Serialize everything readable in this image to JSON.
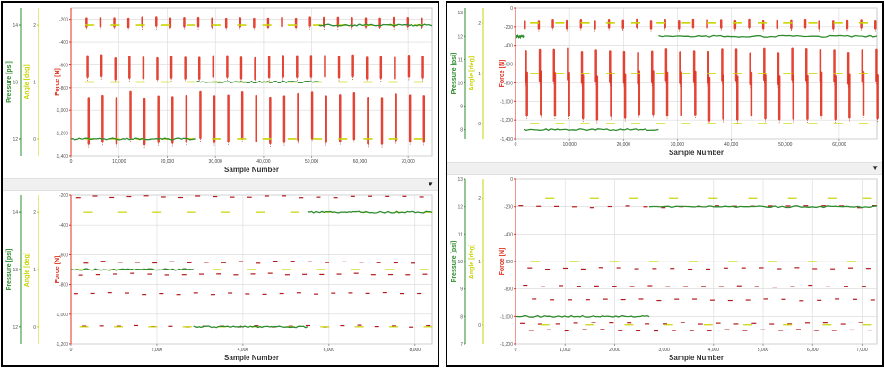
{
  "colors": {
    "pressure": "#2e8b2e",
    "angle": "#c8d400",
    "force": "#e0301e",
    "force_dark": "#b3191b",
    "grid": "#d8d8d8"
  },
  "icons": {
    "splitter_toggle": "dropdown-triangle-icon"
  },
  "chart_data": [
    {
      "id": "left-top",
      "type": "scatter",
      "xlabel": "Sample Number",
      "xlim": [
        0,
        75000
      ],
      "xticks": [
        0,
        10000,
        20000,
        30000,
        40000,
        50000,
        60000,
        70000
      ],
      "xtick_labels": [
        "0",
        "10,000",
        "20,000",
        "30,000",
        "40,000",
        "50,000",
        "60,000",
        "70,000"
      ],
      "axes": {
        "pressure": {
          "label": "Pressure [psi]",
          "ylim": [
            11.7,
            14.3
          ],
          "ticks": [
            12,
            13,
            14
          ],
          "labels": [
            "12",
            "13",
            "14"
          ]
        },
        "angle": {
          "label": "Angle [deg]",
          "ylim": [
            -0.3,
            2.3
          ],
          "ticks": [
            0,
            1,
            2
          ],
          "labels": [
            "0",
            "1",
            "2"
          ]
        },
        "force": {
          "label": "Force [N]",
          "ylim": [
            -1400,
            -100
          ],
          "ticks": [
            -200,
            -400,
            -600,
            -800,
            -1000,
            -1200,
            -1400
          ],
          "labels": [
            "-200",
            "-400",
            "-600",
            "-800",
            "-1,000",
            "-1,200",
            "-1,400"
          ]
        }
      },
      "force_bursts": {
        "start": 3000,
        "period": 2900,
        "width": 320,
        "rows": [
          [
            -180,
            -270
          ],
          [
            -520,
            -720
          ],
          [
            -860,
            -1280
          ]
        ]
      },
      "pressure_series": [
        {
          "x0": 0,
          "x1": 26000,
          "y": 12.0
        },
        {
          "x0": 26000,
          "x1": 51500,
          "y": 13.0
        },
        {
          "x0": 51500,
          "x1": 75000,
          "y": 14.0
        }
      ],
      "angle_levels": [
        {
          "x0": 0,
          "x1": 75000,
          "y": 0.0
        },
        {
          "x0": 0,
          "x1": 75000,
          "y": 1.0
        },
        {
          "x0": 0,
          "x1": 75000,
          "y": 2.0
        }
      ]
    },
    {
      "id": "left-bottom",
      "type": "scatter",
      "xlabel": "Sample Number",
      "xlim": [
        0,
        8400
      ],
      "xticks": [
        0,
        2000,
        4000,
        6000,
        8000
      ],
      "xtick_labels": [
        "0",
        "2,000",
        "4,000",
        "6,000",
        "8,000"
      ],
      "axes": {
        "pressure": {
          "label": "Pressure [psi]",
          "ylim": [
            11.7,
            14.3
          ],
          "ticks": [
            12,
            13,
            14
          ],
          "labels": [
            "12",
            "13",
            "14"
          ]
        },
        "angle": {
          "label": "Angle [deg]",
          "ylim": [
            -0.3,
            2.3
          ],
          "ticks": [
            0,
            1,
            2
          ],
          "labels": [
            "0",
            "1",
            "2"
          ]
        },
        "force": {
          "label": "Force [N]",
          "ylim": [
            -1200,
            -200
          ],
          "ticks": [
            -200,
            -400,
            -600,
            -800,
            -1000,
            -1200
          ],
          "labels": [
            "-200",
            "-400",
            "-600",
            "-800",
            "-1,000",
            "-1,200"
          ]
        }
      },
      "force_levels": [
        {
          "y": -210,
          "xs": [
            120,
            510,
            900,
            1300,
            1700,
            2100,
            2500,
            2900,
            3300,
            3700,
            4100,
            4500,
            4900,
            5300,
            5700,
            6100,
            6500,
            6900,
            7300,
            7700,
            8100
          ]
        },
        {
          "y": -650,
          "xs": [
            300,
            700,
            1100,
            1500,
            1900,
            2300,
            2700,
            3100,
            3500,
            3900,
            4300,
            4700,
            5100,
            5500,
            5900,
            6300,
            6700,
            7100,
            7500,
            7900
          ]
        },
        {
          "y": -730,
          "xs": [
            180,
            580,
            980,
            1380,
            1780,
            2180,
            2580,
            2980,
            3380,
            3780,
            4180,
            4580,
            4980,
            5380,
            5780,
            6180,
            6580,
            6980,
            7380,
            7780,
            8180
          ]
        },
        {
          "y": -860,
          "xs": [
            60,
            450,
            850,
            1250,
            1650,
            2050,
            2450,
            2850,
            3250,
            3650,
            4050,
            4450,
            4850,
            5250,
            5650,
            6050,
            6450,
            6850,
            7250,
            7650,
            8050
          ]
        },
        {
          "y": -1080,
          "xs": [
            260,
            660,
            1060,
            1460,
            1860,
            2260,
            2660,
            3060,
            3460,
            3860,
            4260,
            4660,
            5060,
            5460,
            5860,
            6260,
            6660,
            7060,
            7460,
            7860,
            8260
          ]
        }
      ],
      "pressure_series": [
        {
          "x0": 0,
          "x1": 2850,
          "y": 13.0
        },
        {
          "x0": 2850,
          "x1": 5500,
          "y": 12.0
        },
        {
          "x0": 5500,
          "x1": 8400,
          "y": 14.0
        }
      ],
      "angle_segments": [
        {
          "y": 2.0,
          "xs": [
            300,
            1100,
            1900,
            2700,
            3500,
            4300,
            5100,
            5900,
            6700,
            7500,
            8200
          ]
        },
        {
          "y": 1.0,
          "xs": [
            100,
            900,
            1700,
            2500,
            3300,
            4100,
            4900,
            5700,
            6500,
            7300,
            8100
          ]
        },
        {
          "y": 0.0,
          "xs": [
            200,
            1000,
            1800,
            2600,
            3400,
            4200,
            5000,
            5800,
            6600,
            7400,
            8200
          ]
        }
      ]
    },
    {
      "id": "right-top",
      "type": "scatter",
      "xlabel": "Sample Number",
      "xlim": [
        0,
        67000
      ],
      "xticks": [
        0,
        10000,
        20000,
        30000,
        40000,
        50000,
        60000
      ],
      "xtick_labels": [
        "0",
        "10,000",
        "20,000",
        "30,000",
        "40,000",
        "50,000",
        "60,000"
      ],
      "axes": {
        "pressure": {
          "label": "Pressure [psi]",
          "ylim": [
            7.6,
            13.2
          ],
          "ticks": [
            8,
            9,
            10,
            11,
            12,
            13
          ],
          "labels": [
            "8",
            "9",
            "10",
            "11",
            "12",
            "13"
          ]
        },
        "angle": {
          "label": "Angle [deg]",
          "ylim": [
            -0.3,
            2.3
          ],
          "ticks": [
            0,
            1,
            2
          ],
          "labels": [
            "0",
            "1",
            "2"
          ]
        },
        "force": {
          "label": "Force [N]",
          "ylim": [
            -1400,
            0
          ],
          "ticks": [
            0,
            -200,
            -400,
            -600,
            -800,
            -1000,
            -1200,
            -1400
          ],
          "labels": [
            "0",
            "-200",
            "-400",
            "-600",
            "-800",
            "-1,000",
            "-1,200",
            "-1,400"
          ]
        }
      },
      "force_bursts": {
        "start": 1500,
        "period": 2600,
        "width": 300,
        "rows": [
          [
            -120,
            -220
          ],
          [
            -450,
            -800
          ],
          [
            -700,
            -1180
          ]
        ]
      },
      "pressure_series": [
        {
          "x0": 0,
          "x1": 1500,
          "y": 12.0
        },
        {
          "x0": 1500,
          "x1": 26500,
          "y": 8.0
        },
        {
          "x0": 26500,
          "x1": 67000,
          "y": 12.0
        }
      ],
      "angle_levels": [
        {
          "x0": 0,
          "x1": 67000,
          "y": 0.0
        },
        {
          "x0": 0,
          "x1": 67000,
          "y": 1.0
        },
        {
          "x0": 0,
          "x1": 67000,
          "y": 2.0
        }
      ]
    },
    {
      "id": "right-bottom",
      "type": "scatter",
      "xlabel": "Sample Number",
      "xlim": [
        0,
        7300
      ],
      "xticks": [
        0,
        1000,
        2000,
        3000,
        4000,
        5000,
        6000,
        7000
      ],
      "xtick_labels": [
        "0",
        "1,000",
        "2,000",
        "3,000",
        "4,000",
        "5,000",
        "6,000",
        "7,000"
      ],
      "axes": {
        "pressure": {
          "label": "Pressure [psi]",
          "ylim": [
            7,
            13
          ],
          "ticks": [
            7,
            8,
            9,
            10,
            11,
            12,
            13
          ],
          "labels": [
            "7",
            "8",
            "9",
            "10",
            "11",
            "12",
            "13"
          ]
        },
        "angle": {
          "label": "Angle [deg]",
          "ylim": [
            -0.3,
            2.3
          ],
          "ticks": [
            0,
            1,
            2
          ],
          "labels": [
            "0",
            "1",
            "2"
          ]
        },
        "force": {
          "label": "Force [N]",
          "ylim": [
            -1200,
            0
          ],
          "ticks": [
            0,
            -200,
            -400,
            -600,
            -800,
            -1000,
            -1200
          ],
          "labels": [
            "0",
            "-200",
            "-400",
            "-600",
            "-800",
            "-1,000",
            "-1,200"
          ]
        }
      },
      "force_levels": [
        {
          "y": -200,
          "xs": [
            60,
            420,
            780,
            1140,
            1500,
            1860,
            2220,
            2580,
            2940,
            3300,
            3660,
            4020,
            4380,
            4740,
            5100,
            5460,
            5820,
            6180,
            6540,
            6900,
            7200
          ]
        },
        {
          "y": -650,
          "xs": [
            240,
            600,
            960,
            1320,
            1680,
            2040,
            2400,
            2760,
            3120,
            3480,
            3840,
            4200,
            4560,
            4920,
            5280,
            5640,
            6000,
            6360,
            6720,
            7080
          ]
        },
        {
          "y": -780,
          "xs": [
            150,
            510,
            870,
            1230,
            1590,
            1950,
            2310,
            2670,
            3030,
            3390,
            3750,
            4110,
            4470,
            4830,
            5190,
            5550,
            5910,
            6270,
            6630,
            6990
          ]
        },
        {
          "y": -880,
          "xs": [
            330,
            690,
            1050,
            1410,
            1770,
            2130,
            2490,
            2850,
            3210,
            3570,
            3930,
            4290,
            4650,
            5010,
            5370,
            5730,
            6090,
            6450,
            6810,
            7170
          ]
        },
        {
          "y": -1050,
          "xs": [
            90,
            450,
            810,
            1170,
            1530,
            1890,
            2250,
            2610,
            2970,
            3330,
            3690,
            4050,
            4410,
            4770,
            5130,
            5490,
            5850,
            6210,
            6570,
            6930
          ]
        },
        {
          "y": -1100,
          "xs": [
            270,
            630,
            990,
            1350,
            1710,
            2070,
            2430,
            2790,
            3150,
            3510,
            3870,
            4230,
            4590,
            4950,
            5310,
            5670,
            6030,
            6390,
            6750,
            7110
          ]
        }
      ],
      "pressure_series": [
        {
          "x0": 0,
          "x1": 2700,
          "y": 8.0
        },
        {
          "x0": 2700,
          "x1": 7300,
          "y": 12.0
        }
      ],
      "angle_segments": [
        {
          "y": 2.0,
          "xs": [
            600,
            1500,
            2300,
            3100,
            3900,
            4700,
            5500,
            6300,
            7000
          ]
        },
        {
          "y": 1.0,
          "xs": [
            300,
            1100,
            1900,
            2700,
            3500,
            4300,
            5100,
            5900,
            6700
          ]
        },
        {
          "y": 0.0,
          "xs": [
            500,
            1400,
            2200,
            3000,
            3800,
            4600,
            5400,
            6200,
            7000
          ]
        }
      ]
    }
  ]
}
